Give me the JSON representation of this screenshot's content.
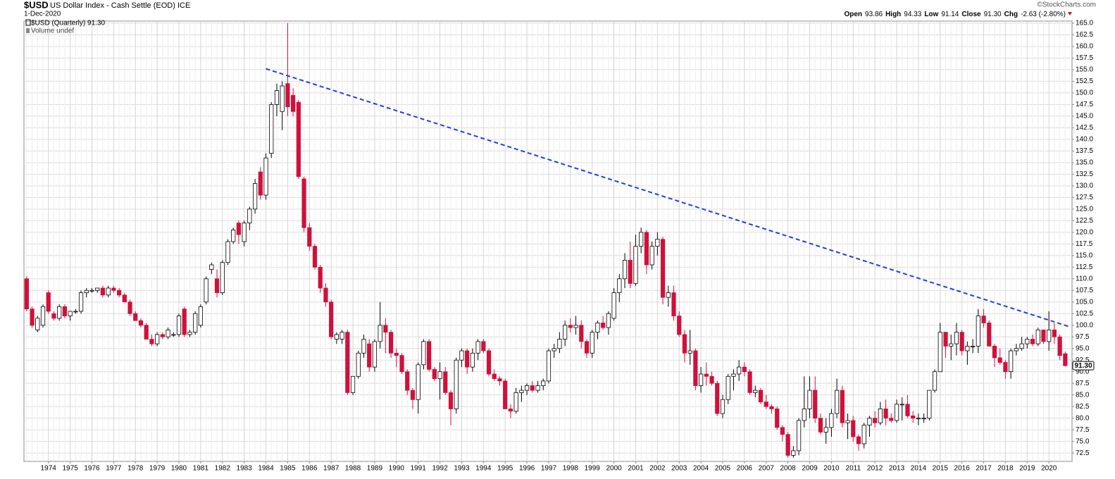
{
  "chart_data": {
    "type": "candlestick",
    "title": "$USD",
    "subtitle": "US Dollar Index - Cash Settle (EOD) ICE",
    "date": "1-Dec-2020",
    "source": "©StockCharts.com",
    "quote": [
      "Open",
      "93.86",
      "High",
      "94.33",
      "Low",
      "91.14",
      "Close",
      "91.30",
      "Chg",
      "-2.63 (-2.80%)"
    ],
    "legend": [
      "$USD (Quarterly) 91.30",
      "Volume undef"
    ],
    "last_label": "91.30",
    "last_value": 91.3,
    "up_color": "#ffffff",
    "down_color": "#d0103a",
    "outline_color": "#000000",
    "grid": true,
    "ylim": [
      70.7,
      165.45
    ],
    "yticks": [
      72.5,
      {
        "value": 75,
        "label": "75.0"
      },
      77.5,
      {
        "value": 80,
        "label": "80.0"
      },
      82.5,
      {
        "value": 85,
        "label": "85.0"
      },
      87.5,
      {
        "value": 90,
        "label": "90.0"
      },
      92.5,
      {
        "value": 95,
        "label": "95.0"
      },
      97.5,
      {
        "value": 100,
        "label": "100.0"
      },
      102.5,
      {
        "value": 105,
        "label": "105.0"
      },
      107.5,
      {
        "value": 110,
        "label": "110.0"
      },
      112.5,
      {
        "value": 115,
        "label": "115.0"
      },
      117.5,
      {
        "value": 120,
        "label": "120.0"
      },
      122.5,
      {
        "value": 125,
        "label": "125.0"
      },
      127.5,
      {
        "value": 130,
        "label": "130.0"
      },
      132.5,
      {
        "value": 135,
        "label": "135.0"
      },
      137.5,
      {
        "value": 140,
        "label": "140.0"
      },
      142.5,
      {
        "value": 145,
        "label": "145.0"
      },
      147.5,
      {
        "value": 150,
        "label": "150.0"
      },
      152.5,
      {
        "value": 155,
        "label": "155.0"
      },
      157.5,
      {
        "value": 160,
        "label": "160.0"
      },
      162.5,
      {
        "value": 165,
        "label": "165.0"
      }
    ],
    "categories": [
      null,
      null,
      null,
      null,
      "1974",
      null,
      null,
      null,
      "1975",
      null,
      null,
      null,
      "1976",
      null,
      null,
      null,
      "1977",
      null,
      null,
      null,
      "1978",
      null,
      null,
      null,
      "1979",
      null,
      null,
      null,
      "1980",
      null,
      null,
      null,
      "1981",
      null,
      null,
      null,
      "1982",
      null,
      null,
      null,
      "1983",
      null,
      null,
      null,
      "1984",
      null,
      null,
      null,
      "1985",
      null,
      null,
      null,
      "1986",
      null,
      null,
      null,
      "1987",
      null,
      null,
      null,
      "1988",
      null,
      null,
      null,
      "1989",
      null,
      null,
      null,
      "1990",
      null,
      null,
      null,
      "1991",
      null,
      null,
      null,
      "1992",
      null,
      null,
      null,
      "1993",
      null,
      null,
      null,
      "1994",
      null,
      null,
      null,
      "1995",
      null,
      null,
      null,
      "1996",
      null,
      null,
      null,
      "1997",
      null,
      null,
      null,
      "1998",
      null,
      null,
      null,
      "1999",
      null,
      null,
      null,
      "2000",
      null,
      null,
      null,
      "2001",
      null,
      null,
      null,
      "2002",
      null,
      null,
      null,
      "2003",
      null,
      null,
      null,
      "2004",
      null,
      null,
      null,
      "2005",
      null,
      null,
      null,
      "2006",
      null,
      null,
      null,
      "2007",
      null,
      null,
      null,
      "2008",
      null,
      null,
      null,
      "2009",
      null,
      null,
      null,
      "2010",
      null,
      null,
      null,
      "2011",
      null,
      null,
      null,
      "2012",
      null,
      null,
      null,
      "2013",
      null,
      null,
      null,
      "2014",
      null,
      null,
      null,
      "2015",
      null,
      null,
      null,
      "2016",
      null,
      null,
      null,
      "2017",
      null,
      null,
      null,
      "2018",
      null,
      null,
      null,
      "2019",
      null,
      null,
      null,
      "2020",
      null,
      null,
      null
    ],
    "open": [
      110,
      103.5,
      99,
      100,
      107,
      102.5,
      101.5,
      104,
      102,
      103,
      103,
      107,
      107.5,
      107.5,
      108,
      106.5,
      108,
      107.5,
      106.5,
      105,
      102.5,
      101,
      100,
      97,
      96,
      98,
      97.5,
      98,
      98,
      103.5,
      98,
      98.5,
      100,
      105,
      112,
      110,
      107,
      113.5,
      118,
      122,
      118,
      122,
      125,
      133,
      128,
      137,
      147.5,
      146,
      152,
      149.5,
      148,
      131.5,
      121,
      117,
      112.5,
      108,
      105,
      97,
      97,
      98.5,
      85.5,
      89,
      94,
      96,
      91,
      96.5,
      100,
      98.5,
      94,
      93.5,
      90,
      86,
      84,
      91.5,
      96.5,
      90.5,
      88.5,
      90,
      85.5,
      82,
      92.5,
      94.5,
      91,
      94,
      96.5,
      94.5,
      89.5,
      88.5,
      88,
      82,
      81.5,
      85.5,
      86,
      87,
      86,
      87,
      88,
      94.5,
      95,
      97,
      100,
      99.5,
      100,
      96.5,
      94,
      98.5,
      100.5,
      99.5,
      101.5,
      107,
      110,
      114,
      109,
      117,
      120,
      113,
      117,
      118.5,
      106,
      107,
      102,
      98,
      94,
      94.5,
      87,
      89.5,
      89,
      87.5,
      81,
      84,
      89,
      89.5,
      91,
      90,
      85.5,
      86,
      83.5,
      82.5,
      82,
      78,
      76.5,
      72,
      73,
      79.5,
      82,
      86,
      80,
      77,
      78,
      81,
      86,
      79,
      79.5,
      76,
      74.5,
      78.5,
      80,
      79,
      82,
      80,
      79.5,
      83,
      83,
      80.5,
      80,
      80,
      80,
      86,
      90,
      98.5,
      95.5,
      96,
      98.5,
      94.5,
      95.5,
      95.5,
      102,
      100.5,
      95.5,
      93,
      92,
      90,
      94.5,
      95,
      96,
      97,
      96,
      99,
      96.5,
      99,
      97.5,
      93.86
    ],
    "high": [
      110.5,
      104,
      102,
      104.5,
      107.5,
      103,
      104.5,
      104.5,
      103,
      103.5,
      107.5,
      108,
      108,
      108,
      108.5,
      108.5,
      108.5,
      108,
      107,
      105.5,
      103,
      101.5,
      100.5,
      98,
      98.5,
      98.5,
      99.5,
      98.5,
      102.5,
      104,
      99,
      103,
      104.5,
      110.5,
      113.5,
      112,
      114,
      118.5,
      121,
      122.5,
      122.5,
      125.5,
      131.5,
      134,
      137,
      148,
      152,
      152.5,
      165,
      151,
      148.5,
      132,
      122,
      117.5,
      113,
      109,
      105.5,
      98.5,
      99,
      99,
      89,
      94.5,
      98,
      97,
      97,
      105,
      101.5,
      99,
      95,
      94,
      90.5,
      86.5,
      92,
      97,
      97,
      91,
      92,
      91,
      86,
      93,
      95,
      95,
      95,
      97,
      97,
      95,
      90.5,
      89,
      88.5,
      83,
      86.5,
      87,
      87.5,
      88,
      88,
      88.5,
      95,
      96,
      98.5,
      101,
      101.5,
      102,
      101,
      97,
      99,
      101,
      102,
      103,
      108,
      111,
      115.5,
      118,
      119.5,
      121,
      120.5,
      118,
      120,
      119,
      108.5,
      108.5,
      103,
      99,
      99,
      95,
      91,
      92,
      90,
      88,
      85,
      89.5,
      90.5,
      92.5,
      92,
      90.5,
      87,
      86.5,
      85,
      83,
      82.5,
      78.5,
      77,
      74,
      80,
      89,
      89,
      89,
      81,
      80,
      82,
      88.5,
      87,
      81,
      80.5,
      76.5,
      79,
      80.5,
      81.5,
      83.5,
      84,
      81,
      84,
      84.5,
      85,
      81.5,
      81,
      81,
      86,
      90.5,
      100.5,
      98.5,
      98,
      100.5,
      99,
      96.5,
      97,
      103.5,
      103.5,
      101,
      96,
      95,
      92.5,
      95,
      96,
      97.5,
      97.5,
      98,
      99.5,
      99,
      103,
      100.5,
      98,
      94.33
    ],
    "low": [
      103,
      99.5,
      98.5,
      99.5,
      102.5,
      101,
      101,
      101.5,
      101,
      102.5,
      102.5,
      106,
      107,
      107,
      106,
      106,
      107,
      106,
      105,
      102,
      101,
      99.5,
      97,
      95.5,
      95.5,
      97,
      97,
      97.5,
      97.5,
      97.5,
      97.5,
      98,
      99.5,
      104.5,
      111,
      106,
      106.5,
      113,
      117.5,
      117.5,
      117,
      120.5,
      124,
      127,
      127,
      136,
      145,
      142,
      145,
      145,
      131.5,
      120,
      116,
      112,
      107,
      104,
      97,
      96,
      96,
      85,
      85,
      88.5,
      93,
      90,
      90,
      95,
      94,
      93,
      91,
      89.5,
      85,
      82,
      81,
      90.5,
      90,
      88,
      84,
      85,
      78.5,
      81,
      91,
      89.5,
      90,
      92.5,
      94,
      89,
      88,
      87,
      82,
      80,
      81,
      83.5,
      85,
      85.5,
      85.5,
      86,
      87.5,
      93,
      94,
      95.5,
      98.5,
      98,
      95,
      93,
      93,
      97,
      99,
      98,
      101,
      105,
      108,
      108,
      108.5,
      115.5,
      111,
      112,
      115,
      104.5,
      104,
      101,
      97.5,
      92,
      91.5,
      86,
      85.5,
      87,
      87,
      80.5,
      80,
      83,
      86,
      88,
      89,
      85,
      84.5,
      83,
      82,
      81,
      77.5,
      75,
      71.5,
      71.5,
      72,
      78,
      80,
      79,
      76.5,
      74.5,
      76,
      80,
      78,
      75.5,
      75,
      73,
      73.5,
      76,
      78,
      78.5,
      78.5,
      79,
      79,
      79.5,
      80,
      79,
      78.5,
      79,
      79.5,
      85.5,
      90,
      93,
      92.5,
      93.5,
      93.5,
      91.5,
      94,
      94,
      99.5,
      95.5,
      91,
      91.5,
      88.5,
      88.5,
      93.5,
      94.5,
      95,
      95.5,
      95.5,
      96,
      94.5,
      96,
      92.5,
      91.14
    ],
    "close": [
      103.5,
      100,
      101.5,
      104,
      103,
      101.5,
      104,
      102,
      103,
      103,
      107,
      107.5,
      107.5,
      108,
      106.5,
      108,
      107.5,
      106.5,
      105,
      102.5,
      101,
      100,
      97,
      96,
      98,
      97.5,
      99,
      98,
      102,
      98,
      98.5,
      102.5,
      104,
      110,
      113,
      107,
      113.5,
      118,
      120.5,
      119.5,
      122,
      125,
      130.5,
      128,
      136,
      147.5,
      150.5,
      151.5,
      147,
      146,
      132,
      121,
      117,
      112.5,
      108,
      105,
      97.5,
      98,
      98.5,
      85.5,
      89,
      94,
      97,
      91,
      96.5,
      100,
      98.5,
      94,
      93.5,
      90,
      86,
      84,
      91.5,
      96.5,
      90.5,
      88.5,
      90,
      85.5,
      82,
      92.5,
      94.5,
      91,
      94,
      96.5,
      94.5,
      89.5,
      88.5,
      88,
      82,
      81.5,
      85.5,
      86,
      87,
      86,
      87,
      88,
      94.5,
      95,
      97,
      100,
      99.5,
      100,
      96.5,
      94,
      98.5,
      100.5,
      99.5,
      102.5,
      107,
      110,
      114,
      109,
      117,
      120,
      113,
      117,
      118.5,
      106,
      107,
      102,
      98,
      94,
      94.5,
      87,
      89.5,
      89,
      87.5,
      81,
      84,
      89,
      89.5,
      91,
      90,
      85.5,
      86,
      83.5,
      82.5,
      82,
      78,
      76.5,
      72,
      73,
      79.5,
      82,
      86,
      80,
      77,
      78,
      81,
      86,
      79,
      79.5,
      76,
      74.5,
      78.5,
      80,
      79,
      82,
      80,
      79.5,
      83,
      83,
      80.5,
      80,
      80,
      80,
      86,
      90,
      98.5,
      95.5,
      96,
      98.5,
      94.5,
      95.5,
      95.5,
      102,
      100.5,
      95.5,
      93,
      92,
      90,
      94.5,
      95,
      96,
      97,
      96,
      99,
      96.5,
      99,
      97.5,
      93.5,
      91.3
    ],
    "trendline": {
      "color": "#1f3fe0",
      "x": [
        44,
        192
      ],
      "values": [
        155.2,
        99.6
      ]
    }
  }
}
